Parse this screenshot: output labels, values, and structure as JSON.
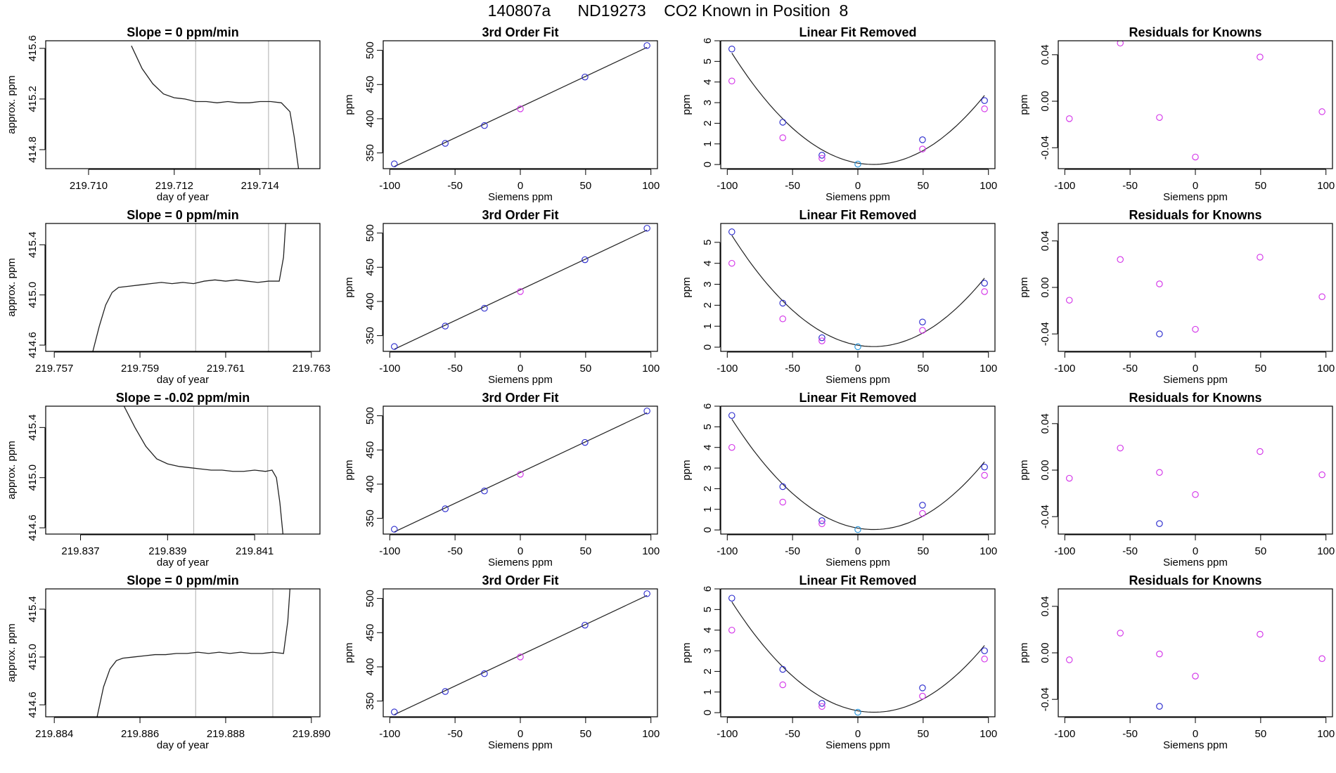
{
  "figure_title": "140807a      ND19273    CO2 Known in Position  8",
  "colors": {
    "blue": "#2525cc",
    "magenta": "#d22ee8",
    "cyan": "#1e8fd8",
    "line": "#222222",
    "vline": "#bbbbbb"
  },
  "chart_data": [
    {
      "type": "line",
      "title": "Slope =  0  ppm/min",
      "xlabel": "day of year",
      "ylabel": "approx. ppm",
      "xlim": [
        219.709,
        219.7154
      ],
      "ylim": [
        414.65,
        415.66
      ],
      "xticks": [
        219.71,
        219.712,
        219.714
      ],
      "xtick_labels": [
        "219.710",
        "219.712",
        "219.714"
      ],
      "yticks": [
        414.8,
        415.2,
        415.6
      ],
      "ytick_labels": [
        "414.8",
        "415.2",
        "415.6"
      ],
      "vlines": [
        219.7125,
        219.7142
      ],
      "series": [
        {
          "name": "trace",
          "x": [
            219.711,
            219.71125,
            219.7115,
            219.71175,
            219.712,
            219.71225,
            219.7125,
            219.71275,
            219.713,
            219.71325,
            219.7135,
            219.71375,
            219.714,
            219.71425,
            219.7145,
            219.7147,
            219.7148,
            219.7149
          ],
          "y": [
            415.62,
            415.44,
            415.32,
            415.24,
            415.21,
            415.2,
            415.18,
            415.18,
            415.17,
            415.18,
            415.17,
            415.17,
            415.18,
            415.18,
            415.17,
            415.1,
            414.9,
            414.65
          ]
        }
      ]
    },
    {
      "type": "scatter",
      "title": "3rd Order Fit",
      "xlabel": "Siemens ppm",
      "ylabel": "ppm",
      "xlim": [
        -105,
        105
      ],
      "ylim": [
        327,
        514
      ],
      "xticks": [
        -100,
        -50,
        0,
        50,
        100
      ],
      "xtick_labels": [
        "-100",
        "-50",
        "0",
        "50",
        "100"
      ],
      "yticks": [
        350,
        400,
        450,
        500
      ],
      "ytick_labels": [
        "350",
        "400",
        "450",
        "500"
      ],
      "fit_curve": "linear",
      "series": [
        {
          "name": "knowns",
          "x": [
            -96.5,
            -57.5,
            -27.5,
            0,
            49.5,
            97
          ],
          "y": [
            334,
            364,
            390,
            414.5,
            461,
            507
          ]
        }
      ]
    },
    {
      "type": "scatter",
      "title": "Linear Fit Removed",
      "xlabel": "Siemens ppm",
      "ylabel": "ppm",
      "xlim": [
        -105,
        105
      ],
      "ylim": [
        -0.2,
        6
      ],
      "xticks": [
        -100,
        -50,
        0,
        50,
        100
      ],
      "xtick_labels": [
        "-100",
        "-50",
        "0",
        "50",
        "100"
      ],
      "yticks": [
        0,
        1,
        2,
        3,
        4,
        5,
        6
      ],
      "ytick_labels": [
        "0",
        "1",
        "2",
        "3",
        "4",
        "5",
        "6"
      ],
      "fit_curve": "quadratic",
      "series": [
        {
          "name": "fit",
          "x": [
            -96.5,
            -57.5,
            -27.5,
            0,
            49.5,
            97
          ],
          "y": [
            5.6,
            2.05,
            0.45,
            0.02,
            1.2,
            3.1
          ]
        },
        {
          "name": "observed",
          "x": [
            -96.5,
            -57.5,
            -27.5,
            49.5,
            97
          ],
          "y": [
            4.05,
            1.3,
            0.3,
            0.75,
            2.7
          ]
        }
      ]
    },
    {
      "type": "scatter",
      "title": "Residuals for Knowns",
      "xlabel": "Siemens ppm",
      "ylabel": "ppm",
      "xlim": [
        -105,
        105
      ],
      "ylim": [
        -0.058,
        0.052
      ],
      "xticks": [
        -100,
        -50,
        0,
        50,
        100
      ],
      "xtick_labels": [
        "-100",
        "-50",
        "0",
        "50",
        "100"
      ],
      "yticks": [
        -0.04,
        0,
        0.04
      ],
      "ytick_labels": [
        "-0.04",
        "0.00",
        "0.04"
      ],
      "series": [
        {
          "name": "residuals",
          "x": [
            -96.5,
            -57.5,
            -27.5,
            0,
            49.5,
            97
          ],
          "y": [
            -0.015,
            0.05,
            -0.014,
            -0.048,
            0.038,
            -0.009
          ]
        }
      ]
    },
    {
      "type": "line",
      "title": "Slope =  0  ppm/min",
      "xlabel": "day of year",
      "ylabel": "approx. ppm",
      "xlim": [
        219.7568,
        219.7632
      ],
      "ylim": [
        414.55,
        415.57
      ],
      "xticks": [
        219.757,
        219.759,
        219.761,
        219.763
      ],
      "xtick_labels": [
        "219.757",
        "219.759",
        "219.761",
        "219.763"
      ],
      "yticks": [
        414.6,
        415.0,
        415.4
      ],
      "ytick_labels": [
        "414.6",
        "415.0",
        "415.4"
      ],
      "vlines": [
        219.7603,
        219.762
      ],
      "series": [
        {
          "name": "trace",
          "x": [
            219.7579,
            219.75805,
            219.7582,
            219.75835,
            219.7585,
            219.75875,
            219.759,
            219.75925,
            219.7595,
            219.75975,
            219.76,
            219.76025,
            219.7605,
            219.76075,
            219.761,
            219.76125,
            219.7615,
            219.76175,
            219.762,
            219.76225,
            219.76235,
            219.7624
          ],
          "y": [
            414.55,
            414.75,
            414.92,
            415.02,
            415.06,
            415.07,
            415.08,
            415.09,
            415.1,
            415.09,
            415.1,
            415.09,
            415.11,
            415.12,
            415.11,
            415.12,
            415.11,
            415.1,
            415.11,
            415.11,
            415.3,
            415.57
          ]
        }
      ]
    },
    {
      "type": "scatter",
      "title": "3rd Order Fit",
      "xlabel": "Siemens ppm",
      "ylabel": "ppm",
      "xlim": [
        -105,
        105
      ],
      "ylim": [
        327,
        514
      ],
      "xticks": [
        -100,
        -50,
        0,
        50,
        100
      ],
      "xtick_labels": [
        "-100",
        "-50",
        "0",
        "50",
        "100"
      ],
      "yticks": [
        350,
        400,
        450,
        500
      ],
      "ytick_labels": [
        "350",
        "400",
        "450",
        "500"
      ],
      "fit_curve": "linear",
      "series": [
        {
          "name": "knowns",
          "x": [
            -96.5,
            -57.5,
            -27.5,
            0,
            49.5,
            97
          ],
          "y": [
            334,
            364,
            390,
            414.5,
            461,
            507
          ]
        }
      ]
    },
    {
      "type": "scatter",
      "title": "Linear Fit Removed",
      "xlabel": "Siemens ppm",
      "ylabel": "ppm",
      "xlim": [
        -105,
        105
      ],
      "ylim": [
        -0.2,
        5.9
      ],
      "xticks": [
        -100,
        -50,
        0,
        50,
        100
      ],
      "xtick_labels": [
        "-100",
        "-50",
        "0",
        "50",
        "100"
      ],
      "yticks": [
        0,
        1,
        2,
        3,
        4,
        5
      ],
      "ytick_labels": [
        "0",
        "1",
        "2",
        "3",
        "4",
        "5"
      ],
      "fit_curve": "quadratic",
      "series": [
        {
          "name": "fit",
          "x": [
            -96.5,
            -57.5,
            -27.5,
            0,
            49.5,
            97
          ],
          "y": [
            5.5,
            2.1,
            0.45,
            0.02,
            1.2,
            3.05
          ]
        },
        {
          "name": "observed",
          "x": [
            -96.5,
            -57.5,
            -27.5,
            49.5,
            97
          ],
          "y": [
            4.0,
            1.35,
            0.3,
            0.8,
            2.65
          ]
        }
      ]
    },
    {
      "type": "scatter",
      "title": "Residuals for Knowns",
      "xlabel": "Siemens ppm",
      "ylabel": "ppm",
      "xlim": [
        -105,
        105
      ],
      "ylim": [
        -0.055,
        0.055
      ],
      "xticks": [
        -100,
        -50,
        0,
        50,
        100
      ],
      "xtick_labels": [
        "-100",
        "-50",
        "0",
        "50",
        "100"
      ],
      "yticks": [
        -0.04,
        0,
        0.04
      ],
      "ytick_labels": [
        "-0.04",
        "0.00",
        "0.04"
      ],
      "series": [
        {
          "name": "residuals",
          "x": [
            -96.5,
            -57.5,
            -27.5,
            0,
            49.5,
            97
          ],
          "y": [
            -0.011,
            0.024,
            0.003,
            -0.036,
            0.026,
            -0.008
          ]
        },
        {
          "name": "outlier",
          "x": [
            -27.5
          ],
          "y": [
            -0.04
          ]
        }
      ]
    },
    {
      "type": "line",
      "title": "Slope =  -0.02  ppm/min",
      "xlabel": "day of year",
      "ylabel": "approx. ppm",
      "xlim": [
        219.8362,
        219.8425
      ],
      "ylim": [
        414.55,
        415.57
      ],
      "xticks": [
        219.837,
        219.839,
        219.841
      ],
      "xtick_labels": [
        "219.837",
        "219.839",
        "219.841"
      ],
      "yticks": [
        414.6,
        415.0,
        415.4
      ],
      "ytick_labels": [
        "414.6",
        "415.0",
        "415.4"
      ],
      "vlines": [
        219.8396,
        219.8413
      ],
      "series": [
        {
          "name": "trace",
          "x": [
            219.838,
            219.83825,
            219.8385,
            219.83875,
            219.839,
            219.83925,
            219.8395,
            219.83975,
            219.84,
            219.84025,
            219.8405,
            219.84075,
            219.841,
            219.84125,
            219.8414,
            219.8415,
            219.84158,
            219.84165
          ],
          "y": [
            415.57,
            415.4,
            415.25,
            415.15,
            415.11,
            415.09,
            415.08,
            415.07,
            415.06,
            415.06,
            415.05,
            415.05,
            415.06,
            415.05,
            415.06,
            415.0,
            414.8,
            414.55
          ]
        }
      ]
    },
    {
      "type": "scatter",
      "title": "3rd Order Fit",
      "xlabel": "Siemens ppm",
      "ylabel": "ppm",
      "xlim": [
        -105,
        105
      ],
      "ylim": [
        327,
        514
      ],
      "xticks": [
        -100,
        -50,
        0,
        50,
        100
      ],
      "xtick_labels": [
        "-100",
        "-50",
        "0",
        "50",
        "100"
      ],
      "yticks": [
        350,
        400,
        450,
        500
      ],
      "ytick_labels": [
        "350",
        "400",
        "450",
        "500"
      ],
      "fit_curve": "linear",
      "series": [
        {
          "name": "knowns",
          "x": [
            -96.5,
            -57.5,
            -27.5,
            0,
            49.5,
            97
          ],
          "y": [
            334,
            364,
            390,
            414.5,
            461,
            507
          ]
        }
      ]
    },
    {
      "type": "scatter",
      "title": "Linear Fit Removed",
      "xlabel": "Siemens ppm",
      "ylabel": "ppm",
      "xlim": [
        -105,
        105
      ],
      "ylim": [
        -0.2,
        6
      ],
      "xticks": [
        -100,
        -50,
        0,
        50,
        100
      ],
      "xtick_labels": [
        "-100",
        "-50",
        "0",
        "50",
        "100"
      ],
      "yticks": [
        0,
        1,
        2,
        3,
        4,
        5,
        6
      ],
      "ytick_labels": [
        "0",
        "1",
        "2",
        "3",
        "4",
        "5",
        "6"
      ],
      "fit_curve": "quadratic",
      "series": [
        {
          "name": "fit",
          "x": [
            -96.5,
            -57.5,
            -27.5,
            0,
            49.5,
            97
          ],
          "y": [
            5.55,
            2.1,
            0.45,
            0.02,
            1.2,
            3.05
          ]
        },
        {
          "name": "observed",
          "x": [
            -96.5,
            -57.5,
            -27.5,
            49.5,
            97
          ],
          "y": [
            4.0,
            1.35,
            0.3,
            0.8,
            2.65
          ]
        }
      ]
    },
    {
      "type": "scatter",
      "title": "Residuals for Knowns",
      "xlabel": "Siemens ppm",
      "ylabel": "ppm",
      "xlim": [
        -105,
        105
      ],
      "ylim": [
        -0.055,
        0.055
      ],
      "xticks": [
        -100,
        -50,
        0,
        50,
        100
      ],
      "xtick_labels": [
        "-100",
        "-50",
        "0",
        "50",
        "100"
      ],
      "yticks": [
        -0.04,
        0,
        0.04
      ],
      "ytick_labels": [
        "-0.04",
        "0.00",
        "0.04"
      ],
      "series": [
        {
          "name": "residuals",
          "x": [
            -96.5,
            -57.5,
            -27.5,
            0,
            49.5,
            97
          ],
          "y": [
            -0.007,
            0.019,
            -0.002,
            -0.021,
            0.016,
            -0.004
          ]
        },
        {
          "name": "outlier",
          "x": [
            -27.5
          ],
          "y": [
            -0.046
          ]
        }
      ]
    },
    {
      "type": "line",
      "title": "Slope =  0  ppm/min",
      "xlabel": "day of year",
      "ylabel": "approx. ppm",
      "xlim": [
        219.8838,
        219.8902
      ],
      "ylim": [
        414.5,
        415.57
      ],
      "xticks": [
        219.884,
        219.886,
        219.888,
        219.89
      ],
      "xtick_labels": [
        "219.884",
        "219.886",
        "219.888",
        "219.890"
      ],
      "yticks": [
        414.6,
        415.0,
        415.4
      ],
      "ytick_labels": [
        "414.6",
        "415.0",
        "415.4"
      ],
      "vlines": [
        219.8873,
        219.8891
      ],
      "series": [
        {
          "name": "trace",
          "x": [
            219.885,
            219.88515,
            219.8853,
            219.88545,
            219.8856,
            219.88585,
            219.8861,
            219.88635,
            219.8866,
            219.88685,
            219.8871,
            219.88735,
            219.8876,
            219.88785,
            219.8881,
            219.88835,
            219.8886,
            219.88885,
            219.8891,
            219.88935,
            219.88945,
            219.8895
          ],
          "y": [
            414.5,
            414.75,
            414.9,
            414.97,
            414.99,
            415.0,
            415.01,
            415.02,
            415.02,
            415.03,
            415.03,
            415.04,
            415.03,
            415.04,
            415.03,
            415.04,
            415.03,
            415.03,
            415.04,
            415.03,
            415.3,
            415.57
          ]
        }
      ]
    },
    {
      "type": "scatter",
      "title": "3rd Order Fit",
      "xlabel": "Siemens ppm",
      "ylabel": "ppm",
      "xlim": [
        -105,
        105
      ],
      "ylim": [
        327,
        514
      ],
      "xticks": [
        -100,
        -50,
        0,
        50,
        100
      ],
      "xtick_labels": [
        "-100",
        "-50",
        "0",
        "50",
        "100"
      ],
      "yticks": [
        350,
        400,
        450,
        500
      ],
      "ytick_labels": [
        "350",
        "400",
        "450",
        "500"
      ],
      "fit_curve": "linear",
      "series": [
        {
          "name": "knowns",
          "x": [
            -96.5,
            -57.5,
            -27.5,
            0,
            49.5,
            97
          ],
          "y": [
            334,
            364,
            390,
            414.5,
            461,
            507
          ]
        }
      ]
    },
    {
      "type": "scatter",
      "title": "Linear Fit Removed",
      "xlabel": "Siemens ppm",
      "ylabel": "ppm",
      "xlim": [
        -105,
        105
      ],
      "ylim": [
        -0.2,
        6
      ],
      "xticks": [
        -100,
        -50,
        0,
        50,
        100
      ],
      "xtick_labels": [
        "-100",
        "-50",
        "0",
        "50",
        "100"
      ],
      "yticks": [
        0,
        1,
        2,
        3,
        4,
        5,
        6
      ],
      "ytick_labels": [
        "0",
        "1",
        "2",
        "3",
        "4",
        "5",
        "6"
      ],
      "fit_curve": "quadratic",
      "series": [
        {
          "name": "fit",
          "x": [
            -96.5,
            -57.5,
            -27.5,
            0,
            49.5,
            97
          ],
          "y": [
            5.55,
            2.1,
            0.45,
            0.02,
            1.2,
            3.0
          ]
        },
        {
          "name": "observed",
          "x": [
            -96.5,
            -57.5,
            -27.5,
            49.5,
            97
          ],
          "y": [
            4.0,
            1.35,
            0.3,
            0.8,
            2.6
          ]
        }
      ]
    },
    {
      "type": "scatter",
      "title": "Residuals for Knowns",
      "xlabel": "Siemens ppm",
      "ylabel": "ppm",
      "xlim": [
        -105,
        105
      ],
      "ylim": [
        -0.055,
        0.055
      ],
      "xticks": [
        -100,
        -50,
        0,
        50,
        100
      ],
      "xtick_labels": [
        "-100",
        "-50",
        "0",
        "50",
        "100"
      ],
      "yticks": [
        -0.04,
        0,
        0.04
      ],
      "ytick_labels": [
        "-0.04",
        "0.00",
        "0.04"
      ],
      "series": [
        {
          "name": "residuals",
          "x": [
            -96.5,
            -57.5,
            -27.5,
            0,
            49.5,
            97
          ],
          "y": [
            -0.006,
            0.017,
            -0.001,
            -0.02,
            0.016,
            -0.005
          ]
        },
        {
          "name": "outlier",
          "x": [
            -27.5
          ],
          "y": [
            -0.046
          ]
        }
      ]
    }
  ]
}
